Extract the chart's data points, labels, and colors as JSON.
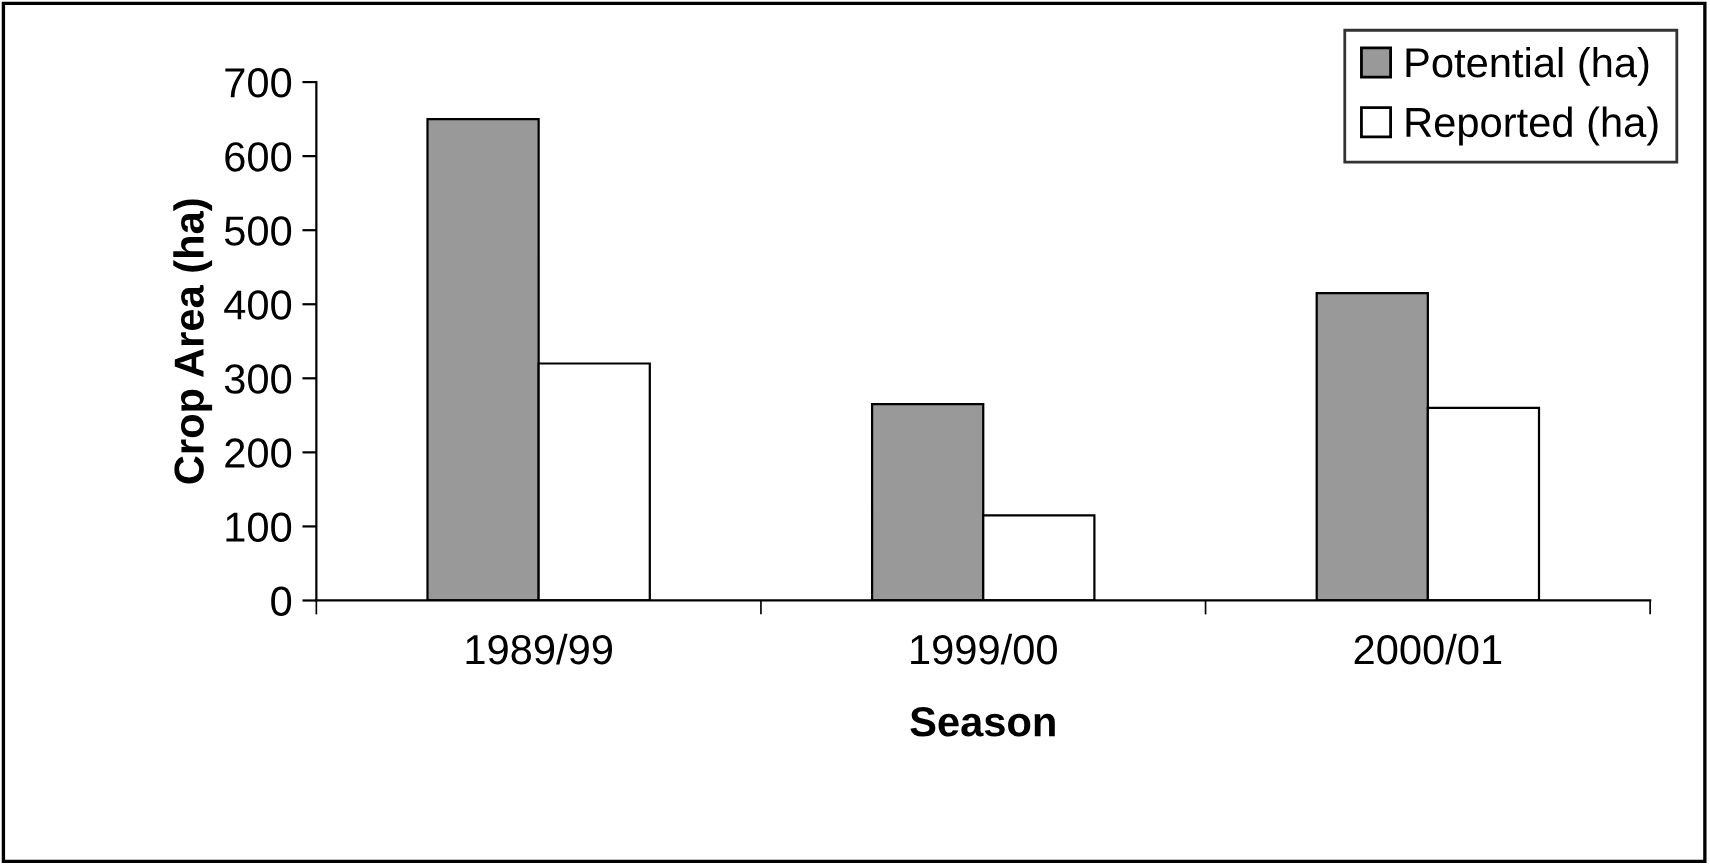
{
  "chart_data": {
    "type": "bar",
    "xlabel": "Season",
    "ylabel": "Crop Area (ha)",
    "categories": [
      "1989/99",
      "1999/00",
      "2000/01"
    ],
    "series": [
      {
        "name": "Potential (ha)",
        "color": "#999999",
        "values": [
          650,
          265,
          415
        ]
      },
      {
        "name": "Reported (ha)",
        "color": "#ffffff",
        "values": [
          320,
          115,
          260
        ]
      }
    ],
    "ylim": [
      0,
      700
    ],
    "yticks": [
      0,
      100,
      200,
      300,
      400,
      500,
      600,
      700
    ],
    "grid": false,
    "legend": "top right"
  }
}
